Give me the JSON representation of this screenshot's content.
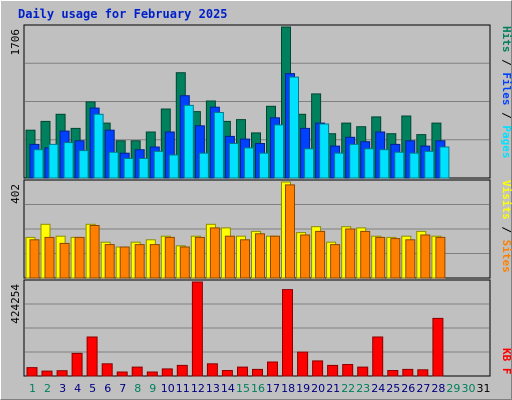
{
  "title": "Daily usage for February 2025",
  "colors": {
    "hits": "#00805c",
    "files": "#0040ff",
    "pages": "#00e0ff",
    "visits": "#ffff00",
    "sites": "#ff8000",
    "kbytes": "#ff0000",
    "weekend_day": "#00805c",
    "weekday": "#000080",
    "empty_day": "#000000"
  },
  "chart_data": [
    {
      "type": "bar",
      "name": "hits-files-pages",
      "ymax_label": "1706",
      "ylim": [
        0,
        1706
      ],
      "legend": [
        "Pages",
        "Files",
        "Hits"
      ],
      "legend_separator": "/",
      "series": [
        {
          "name": "Hits",
          "values": [
            540,
            640,
            720,
            560,
            860,
            620,
            420,
            420,
            520,
            780,
            1190,
            750,
            870,
            640,
            660,
            510,
            810,
            1706,
            720,
            950,
            500,
            620,
            580,
            690,
            500,
            700,
            490,
            620
          ]
        },
        {
          "name": "Files",
          "values": [
            380,
            340,
            530,
            420,
            790,
            540,
            280,
            320,
            350,
            520,
            930,
            590,
            800,
            470,
            440,
            390,
            680,
            1180,
            560,
            620,
            360,
            460,
            410,
            520,
            380,
            420,
            360,
            420
          ]
        },
        {
          "name": "Pages",
          "values": [
            320,
            380,
            400,
            310,
            720,
            290,
            220,
            220,
            300,
            260,
            820,
            280,
            740,
            390,
            340,
            280,
            600,
            1140,
            330,
            610,
            280,
            380,
            330,
            320,
            290,
            280,
            300,
            350
          ]
        }
      ]
    },
    {
      "type": "bar",
      "name": "visits-sites",
      "ymax_label": "402",
      "ylim": [
        0,
        402
      ],
      "legend": [
        "Sites",
        "Visits"
      ],
      "legend_separator": "/",
      "series": [
        {
          "name": "Visits",
          "values": [
            170,
            225,
            175,
            170,
            225,
            150,
            130,
            150,
            160,
            175,
            135,
            175,
            225,
            210,
            175,
            195,
            175,
            402,
            190,
            215,
            150,
            215,
            210,
            175,
            170,
            175,
            195,
            175
          ]
        },
        {
          "name": "Sites",
          "values": [
            160,
            170,
            145,
            170,
            220,
            140,
            130,
            140,
            140,
            170,
            130,
            170,
            210,
            175,
            160,
            185,
            175,
            390,
            180,
            195,
            140,
            205,
            195,
            170,
            165,
            160,
            180,
            170
          ]
        }
      ]
    },
    {
      "type": "bar",
      "name": "kbytes",
      "ymax_label": "424254",
      "ylim": [
        0,
        424254
      ],
      "legend": [
        "KB F"
      ],
      "series": [
        {
          "name": "KB F",
          "values": [
            38000,
            22000,
            24000,
            102000,
            176000,
            55000,
            18000,
            40000,
            18000,
            32000,
            48000,
            424254,
            55000,
            25000,
            40000,
            30000,
            63000,
            390000,
            108000,
            68000,
            48000,
            52000,
            40000,
            176000,
            25000,
            30000,
            28000,
            260000
          ]
        }
      ]
    }
  ],
  "days": [
    {
      "label": "1",
      "kind": "weekend"
    },
    {
      "label": "2",
      "kind": "weekend"
    },
    {
      "label": "3",
      "kind": "weekday"
    },
    {
      "label": "4",
      "kind": "weekday"
    },
    {
      "label": "5",
      "kind": "weekday"
    },
    {
      "label": "6",
      "kind": "weekday"
    },
    {
      "label": "7",
      "kind": "weekday"
    },
    {
      "label": "8",
      "kind": "weekend"
    },
    {
      "label": "9",
      "kind": "weekend"
    },
    {
      "label": "10",
      "kind": "weekday"
    },
    {
      "label": "11",
      "kind": "weekday"
    },
    {
      "label": "12",
      "kind": "weekday"
    },
    {
      "label": "13",
      "kind": "weekday"
    },
    {
      "label": "14",
      "kind": "weekday"
    },
    {
      "label": "15",
      "kind": "weekend"
    },
    {
      "label": "16",
      "kind": "weekend"
    },
    {
      "label": "17",
      "kind": "weekday"
    },
    {
      "label": "18",
      "kind": "weekday"
    },
    {
      "label": "19",
      "kind": "weekday"
    },
    {
      "label": "20",
      "kind": "weekday"
    },
    {
      "label": "21",
      "kind": "weekday"
    },
    {
      "label": "22",
      "kind": "weekend"
    },
    {
      "label": "23",
      "kind": "weekend"
    },
    {
      "label": "24",
      "kind": "weekday"
    },
    {
      "label": "25",
      "kind": "weekday"
    },
    {
      "label": "26",
      "kind": "weekday"
    },
    {
      "label": "27",
      "kind": "weekday"
    },
    {
      "label": "28",
      "kind": "weekday"
    },
    {
      "label": "29",
      "kind": "empty_weekend"
    },
    {
      "label": "30",
      "kind": "empty_weekend"
    },
    {
      "label": "31",
      "kind": "empty"
    }
  ]
}
